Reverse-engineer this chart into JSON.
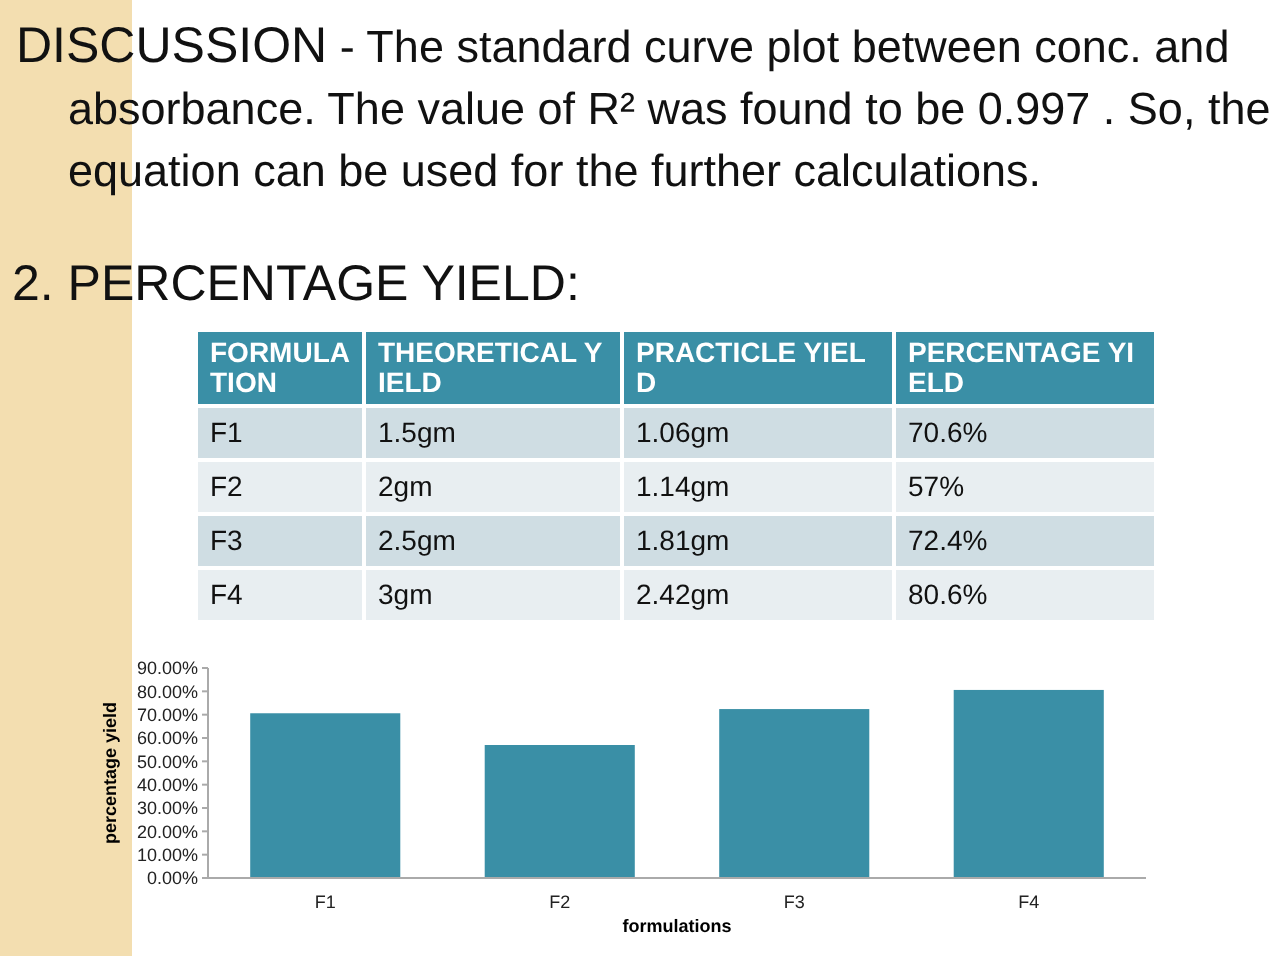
{
  "chart_data": [
    {
      "type": "other",
      "annotations": [
        "DISCUSSION - The standard curve plot between conc. and absorbance. The value of R² was found to be 0.997 . So, the equation can be used for the further calculations.",
        "2. PERCENTAGE YIELD:"
      ]
    },
    {
      "type": "bar",
      "xlabel": "formulations",
      "ylabel": "percentage yield",
      "categories": [
        "F1",
        "F2",
        "F3",
        "F4"
      ],
      "values": [
        70.6,
        57,
        72.4,
        80.6
      ],
      "color": "#3a8fa6",
      "ylim": [
        0,
        90
      ],
      "annotations": [
        "FORMULATION",
        "THEORETICAL YIELD",
        "PRACTICLE YIELD",
        "PERCENTAGE YIELD",
        "1.5gm",
        "2gm",
        "2.5gm",
        "3gm",
        "1.06gm",
        "1.14gm",
        "1.81gm",
        "2.42gm",
        "70.6%",
        "57%",
        "72.4%",
        "80.6%"
      ],
      "yticks": [
        {
          "value": 0,
          "label": "0.00%"
        },
        {
          "value": 10,
          "label": "10.00%"
        },
        {
          "value": 20,
          "label": "20.00%"
        },
        {
          "value": 30,
          "label": "30.00%"
        },
        {
          "value": 40,
          "label": "40.00%"
        },
        {
          "value": 50,
          "label": "50.00%"
        },
        {
          "value": 60,
          "label": "60.00%"
        },
        {
          "value": 70,
          "label": "70.00%"
        },
        {
          "value": 80,
          "label": "80.00%"
        },
        {
          "value": 90,
          "label": "90.00%"
        }
      ],
      "grid": false
    }
  ]
}
